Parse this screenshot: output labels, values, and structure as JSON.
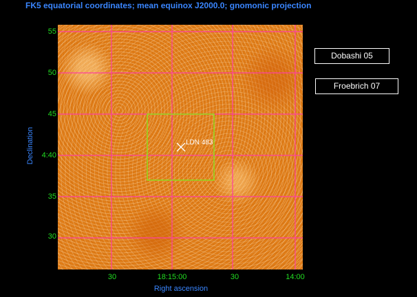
{
  "header": {
    "title": "FK5 equatorial coordinates; mean equinox J2000.0; gnomonic projection"
  },
  "axes": {
    "x_label": "Right ascension",
    "y_label": "Declination",
    "x_ticks": [
      "30",
      "18:15:00",
      "30",
      "14:00"
    ],
    "y_ticks": [
      "55",
      "50",
      "45",
      "4:40",
      "35",
      "30"
    ]
  },
  "target": {
    "label": "LDN 483",
    "color": "#ffffff"
  },
  "catalog_buttons": {
    "dobashi": "Dobashi 05",
    "froebrich": "Froebrich 07"
  },
  "colors": {
    "grid": "#ff3fa0",
    "box": "#8fdc1e",
    "title": "#3a86ff",
    "ticks": "#22dd22",
    "sky": "#e07d17"
  }
}
